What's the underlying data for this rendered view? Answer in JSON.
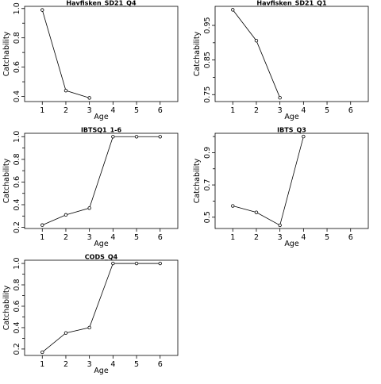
{
  "chart_data": [
    {
      "type": "line",
      "title": "Havfisken_SD21_Q4",
      "xlabel": "Age",
      "ylabel": "Catchability",
      "x": [
        1,
        2,
        3
      ],
      "values": [
        0.99,
        0.44,
        0.39
      ],
      "xlim": [
        0.25,
        6.75
      ],
      "ylim": [
        0.365,
        1.015
      ],
      "x_ticks": [
        "1",
        "2",
        "3",
        "4",
        "5",
        "6"
      ],
      "y_ticks": [
        "0.4",
        "0.6",
        "0.8",
        "1.0"
      ],
      "y_tick_values": [
        0.4,
        0.6,
        0.8,
        1.0
      ],
      "y_minor_ticks": [
        0.5,
        0.7,
        0.9
      ],
      "grid": false
    },
    {
      "type": "line",
      "title": "Havfisken_SD21_Q1",
      "xlabel": "Age",
      "ylabel": "Catchability",
      "x": [
        1,
        2,
        3
      ],
      "values": [
        0.995,
        0.906,
        0.741
      ],
      "xlim": [
        0.25,
        6.75
      ],
      "ylim": [
        0.73,
        1.005
      ],
      "x_ticks": [
        "1",
        "2",
        "3",
        "4",
        "5",
        "6"
      ],
      "y_ticks": [
        "0.75",
        "0.85",
        "0.95"
      ],
      "y_tick_values": [
        0.75,
        0.85,
        0.95
      ],
      "y_minor_ticks": [
        0.8,
        0.9
      ],
      "grid": false
    },
    {
      "type": "line",
      "title": "IBTSQ1_1-6",
      "xlabel": "Age",
      "ylabel": "Catchability",
      "x": [
        1,
        2,
        3,
        4,
        5,
        6
      ],
      "values": [
        0.22,
        0.31,
        0.37,
        1.0,
        1.0,
        1.0
      ],
      "xlim": [
        0.25,
        6.75
      ],
      "ylim": [
        0.19,
        1.03
      ],
      "x_ticks": [
        "1",
        "2",
        "3",
        "4",
        "5",
        "6"
      ],
      "y_ticks": [
        "0.2",
        "0.4",
        "0.6",
        "0.8",
        "1.0"
      ],
      "y_tick_values": [
        0.2,
        0.4,
        0.6,
        0.8,
        1.0
      ],
      "y_minor_ticks": [
        0.3,
        0.5,
        0.7,
        0.9
      ],
      "grid": false
    },
    {
      "type": "line",
      "title": "IBTS_Q3",
      "xlabel": "Age",
      "ylabel": "Catchability",
      "x": [
        1,
        2,
        3,
        4
      ],
      "values": [
        0.57,
        0.53,
        0.45,
        1.0
      ],
      "xlim": [
        0.25,
        6.75
      ],
      "ylim": [
        0.43,
        1.02
      ],
      "x_ticks": [
        "1",
        "2",
        "3",
        "4",
        "5",
        "6"
      ],
      "y_ticks": [
        "0.5",
        "0.7",
        "0.9"
      ],
      "y_tick_values": [
        0.5,
        0.7,
        0.9
      ],
      "y_minor_ticks": [
        0.6,
        0.8,
        1.0
      ],
      "grid": false
    },
    {
      "type": "line",
      "title": "CODS_Q4",
      "xlabel": "Age",
      "ylabel": "Catchability",
      "x": [
        1,
        2,
        3,
        4,
        5,
        6
      ],
      "values": [
        0.17,
        0.35,
        0.4,
        1.0,
        1.0,
        1.0
      ],
      "xlim": [
        0.25,
        6.75
      ],
      "ylim": [
        0.14,
        1.03
      ],
      "x_ticks": [
        "1",
        "2",
        "3",
        "4",
        "5",
        "6"
      ],
      "y_ticks": [
        "0.2",
        "0.4",
        "0.6",
        "0.8",
        "1.0"
      ],
      "y_tick_values": [
        0.2,
        0.4,
        0.6,
        0.8,
        1.0
      ],
      "y_minor_ticks": [
        0.3,
        0.5,
        0.7,
        0.9
      ],
      "grid": false
    }
  ]
}
